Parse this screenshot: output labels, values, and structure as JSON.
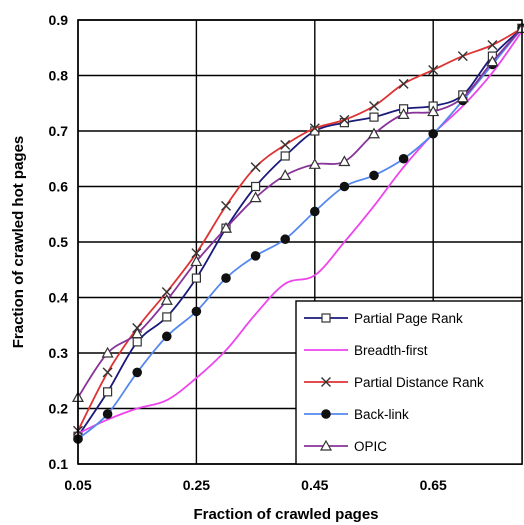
{
  "chart_data": {
    "type": "line",
    "xlabel": "Fraction of crawled pages",
    "ylabel": "Fraction of crawled  hot pages",
    "xlim": [
      0.05,
      0.8
    ],
    "ylim": [
      0.1,
      0.9
    ],
    "xticks": [
      0.05,
      0.25,
      0.45,
      0.65
    ],
    "xtick_labels": [
      "0.05",
      "0.25",
      "0.45",
      "0.65"
    ],
    "yticks": [
      0.1,
      0.2,
      0.3,
      0.4,
      0.5,
      0.6,
      0.7,
      0.8,
      0.9
    ],
    "ytick_labels": [
      "0.1",
      "0.2",
      "0.3",
      "0.4",
      "0.5",
      "0.6",
      "0.7",
      "0.8",
      "0.9"
    ],
    "grid": true,
    "legend_position": "bottom-right",
    "series": [
      {
        "name": "Partial Page Rank",
        "color": "#1a1a7a",
        "marker": "square",
        "x": [
          0.05,
          0.1,
          0.15,
          0.2,
          0.25,
          0.3,
          0.35,
          0.4,
          0.45,
          0.5,
          0.55,
          0.6,
          0.65,
          0.7,
          0.75,
          0.8
        ],
        "y": [
          0.15,
          0.23,
          0.32,
          0.365,
          0.435,
          0.525,
          0.6,
          0.655,
          0.7,
          0.715,
          0.725,
          0.74,
          0.745,
          0.765,
          0.835,
          0.885
        ]
      },
      {
        "name": "Breadth-first",
        "color": "#ee44ee",
        "marker": "none",
        "x": [
          0.05,
          0.1,
          0.15,
          0.2,
          0.25,
          0.3,
          0.35,
          0.4,
          0.45,
          0.5,
          0.55,
          0.6,
          0.65,
          0.7,
          0.75,
          0.8
        ],
        "y": [
          0.155,
          0.18,
          0.2,
          0.215,
          0.255,
          0.305,
          0.37,
          0.425,
          0.44,
          0.5,
          0.565,
          0.635,
          0.695,
          0.745,
          0.805,
          0.88
        ]
      },
      {
        "name": "Partial Distance Rank",
        "color": "#dd3333",
        "marker": "x",
        "x": [
          0.05,
          0.1,
          0.15,
          0.2,
          0.25,
          0.3,
          0.35,
          0.4,
          0.45,
          0.5,
          0.55,
          0.6,
          0.65,
          0.7,
          0.75,
          0.8
        ],
        "y": [
          0.16,
          0.265,
          0.345,
          0.41,
          0.48,
          0.565,
          0.635,
          0.675,
          0.705,
          0.72,
          0.745,
          0.785,
          0.81,
          0.835,
          0.855,
          0.885
        ]
      },
      {
        "name": "Back-link",
        "color": "#5588ee",
        "marker": "circle",
        "x": [
          0.05,
          0.1,
          0.15,
          0.2,
          0.25,
          0.3,
          0.35,
          0.4,
          0.45,
          0.5,
          0.55,
          0.6,
          0.65,
          0.7,
          0.75,
          0.8
        ],
        "y": [
          0.145,
          0.19,
          0.265,
          0.33,
          0.375,
          0.435,
          0.475,
          0.505,
          0.555,
          0.6,
          0.62,
          0.65,
          0.695,
          0.755,
          0.82,
          0.885
        ]
      },
      {
        "name": "OPIC",
        "color": "#883399",
        "marker": "triangle",
        "x": [
          0.05,
          0.1,
          0.15,
          0.2,
          0.25,
          0.3,
          0.35,
          0.4,
          0.45,
          0.5,
          0.55,
          0.6,
          0.65,
          0.7,
          0.75,
          0.8
        ],
        "y": [
          0.22,
          0.3,
          0.335,
          0.395,
          0.465,
          0.525,
          0.58,
          0.62,
          0.64,
          0.645,
          0.695,
          0.73,
          0.735,
          0.76,
          0.825,
          0.885
        ]
      }
    ]
  }
}
